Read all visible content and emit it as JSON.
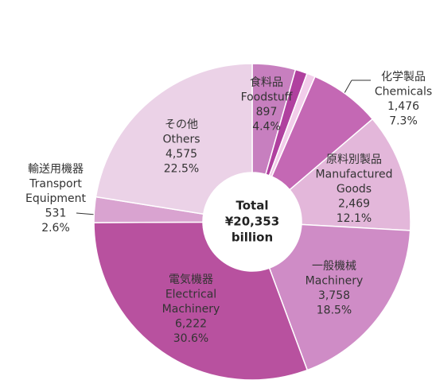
{
  "chart_data": {
    "type": "donut",
    "center_label": [
      "Total",
      "¥20,353",
      "billion"
    ],
    "labels_ja": [
      "食料品",
      null,
      null,
      "化学製品",
      "原料別製品",
      "一般機械",
      "電気機器",
      "輸送用機器",
      "その他"
    ],
    "categories": [
      [
        "Foodstuff"
      ],
      null,
      null,
      [
        "Chemicals"
      ],
      [
        "Manufactured",
        "Goods"
      ],
      [
        "Machinery"
      ],
      [
        "Electrical",
        "Machinery"
      ],
      [
        "Transport",
        "Equipment"
      ],
      [
        "Others"
      ]
    ],
    "values": [
      897,
      250,
      175,
      1476,
      2469,
      3758,
      6222,
      531,
      4575
    ],
    "value_labels": [
      "897",
      null,
      null,
      "1,476",
      "2,469",
      "3,758",
      "6,222",
      "531",
      "4,575"
    ],
    "percent_labels": [
      "4.4%",
      null,
      null,
      "7.3%",
      "12.1%",
      "18.5%",
      "30.6%",
      "2.6%",
      "22.5%"
    ],
    "colors": [
      "#c77fbf",
      "#b0409f",
      "#f2cdea",
      "#c468b4",
      "#e3b7da",
      "#cf8cc6",
      "#b8519f",
      "#d9a3d0",
      "#ebd2e7"
    ]
  }
}
